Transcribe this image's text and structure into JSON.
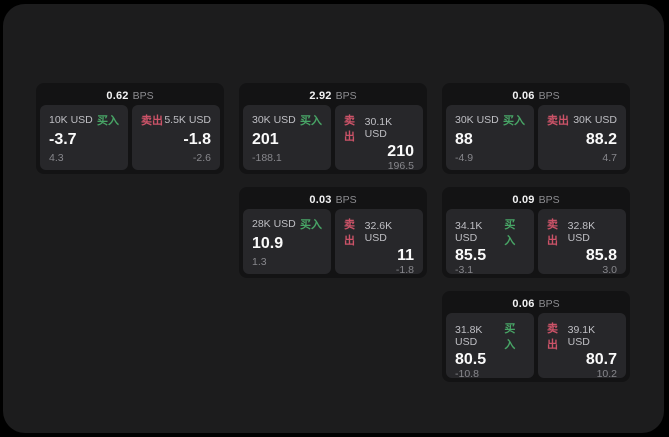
{
  "colors": {
    "buy": "#48a566",
    "sell": "#cc5368"
  },
  "bps_suffix": "BPS",
  "cards": [
    {
      "grid": {
        "row": 1,
        "col": 1
      },
      "bps": "0.62",
      "buy": {
        "amount": "10K USD",
        "label": "买入",
        "value": "-3.7",
        "sub": "4.3"
      },
      "sell": {
        "label": "卖出",
        "amount": "5.5K USD",
        "value": "-1.8",
        "sub": "-2.6"
      }
    },
    {
      "grid": {
        "row": 1,
        "col": 2
      },
      "bps": "2.92",
      "buy": {
        "amount": "30K USD",
        "label": "买入",
        "value": "201",
        "sub": "-188.1"
      },
      "sell": {
        "label": "卖出",
        "amount": "30.1K USD",
        "value": "210",
        "sub": "196.5"
      }
    },
    {
      "grid": {
        "row": 1,
        "col": 3
      },
      "bps": "0.06",
      "buy": {
        "amount": "30K USD",
        "label": "买入",
        "value": "88",
        "sub": "-4.9"
      },
      "sell": {
        "label": "卖出",
        "amount": "30K USD",
        "value": "88.2",
        "sub": "4.7"
      }
    },
    {
      "grid": {
        "row": 2,
        "col": 2
      },
      "bps": "0.03",
      "buy": {
        "amount": "28K USD",
        "label": "买入",
        "value": "10.9",
        "sub": "1.3"
      },
      "sell": {
        "label": "卖出",
        "amount": "32.6K USD",
        "value": "11",
        "sub": "-1.8"
      }
    },
    {
      "grid": {
        "row": 2,
        "col": 3
      },
      "bps": "0.09",
      "buy": {
        "amount": "34.1K USD",
        "label": "买入",
        "value": "85.5",
        "sub": "-3.1"
      },
      "sell": {
        "label": "卖出",
        "amount": "32.8K USD",
        "value": "85.8",
        "sub": "3.0"
      }
    },
    {
      "grid": {
        "row": 3,
        "col": 3
      },
      "bps": "0.06",
      "buy": {
        "amount": "31.8K USD",
        "label": "买入",
        "value": "80.5",
        "sub": "-10.8"
      },
      "sell": {
        "label": "卖出",
        "amount": "39.1K USD",
        "value": "80.7",
        "sub": "10.2"
      }
    }
  ]
}
